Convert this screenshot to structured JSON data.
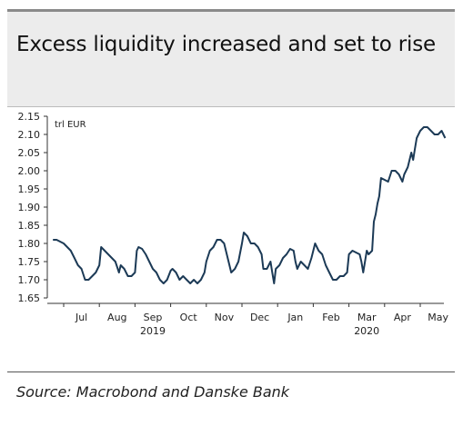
{
  "title": "Excess liquidity increased and set to rise",
  "source": "Source: Macrobond and Danske Bank",
  "chart_data": {
    "type": "line",
    "title": "Excess liquidity increased and set to rise",
    "unit_label": "trl EUR",
    "xlabel": "",
    "ylabel": "",
    "ylim": [
      1.65,
      2.15
    ],
    "yticks": [
      "2.15",
      "2.10",
      "2.05",
      "2.00",
      "1.95",
      "1.90",
      "1.85",
      "1.80",
      "1.75",
      "1.70",
      "1.65"
    ],
    "x_tick_labels": [
      "Jul",
      "Aug",
      "Sep",
      "Oct",
      "Nov",
      "Dec",
      "Jan",
      "Feb",
      "Mar",
      "Apr",
      "May"
    ],
    "year_labels": [
      {
        "label": "2019",
        "month_index": 2.5
      },
      {
        "label": "2020",
        "month_index": 8.5
      }
    ],
    "grid": false,
    "line_color": "#1c3a56",
    "series": [
      {
        "values": [
          [
            -0.3,
            1.81
          ],
          [
            -0.2,
            1.81
          ],
          [
            -0.1,
            1.805
          ],
          [
            0.0,
            1.8
          ],
          [
            0.1,
            1.79
          ],
          [
            0.2,
            1.78
          ],
          [
            0.3,
            1.76
          ],
          [
            0.4,
            1.74
          ],
          [
            0.5,
            1.73
          ],
          [
            0.6,
            1.7
          ],
          [
            0.7,
            1.7
          ],
          [
            0.8,
            1.71
          ],
          [
            0.9,
            1.72
          ],
          [
            1.0,
            1.74
          ],
          [
            1.05,
            1.79
          ],
          [
            1.15,
            1.78
          ],
          [
            1.25,
            1.77
          ],
          [
            1.35,
            1.76
          ],
          [
            1.45,
            1.75
          ],
          [
            1.55,
            1.72
          ],
          [
            1.6,
            1.74
          ],
          [
            1.7,
            1.73
          ],
          [
            1.8,
            1.71
          ],
          [
            1.9,
            1.71
          ],
          [
            2.0,
            1.72
          ],
          [
            2.05,
            1.78
          ],
          [
            2.1,
            1.79
          ],
          [
            2.2,
            1.785
          ],
          [
            2.3,
            1.77
          ],
          [
            2.4,
            1.75
          ],
          [
            2.5,
            1.73
          ],
          [
            2.6,
            1.72
          ],
          [
            2.7,
            1.7
          ],
          [
            2.8,
            1.69
          ],
          [
            2.9,
            1.7
          ],
          [
            3.0,
            1.725
          ],
          [
            3.05,
            1.73
          ],
          [
            3.15,
            1.72
          ],
          [
            3.25,
            1.7
          ],
          [
            3.35,
            1.71
          ],
          [
            3.45,
            1.7
          ],
          [
            3.55,
            1.69
          ],
          [
            3.65,
            1.7
          ],
          [
            3.75,
            1.69
          ],
          [
            3.85,
            1.7
          ],
          [
            3.95,
            1.72
          ],
          [
            4.0,
            1.75
          ],
          [
            4.1,
            1.78
          ],
          [
            4.2,
            1.79
          ],
          [
            4.3,
            1.81
          ],
          [
            4.4,
            1.81
          ],
          [
            4.5,
            1.8
          ],
          [
            4.6,
            1.76
          ],
          [
            4.7,
            1.72
          ],
          [
            4.8,
            1.73
          ],
          [
            4.9,
            1.75
          ],
          [
            5.0,
            1.8
          ],
          [
            5.05,
            1.83
          ],
          [
            5.15,
            1.82
          ],
          [
            5.25,
            1.8
          ],
          [
            5.35,
            1.8
          ],
          [
            5.45,
            1.79
          ],
          [
            5.55,
            1.77
          ],
          [
            5.6,
            1.73
          ],
          [
            5.7,
            1.73
          ],
          [
            5.8,
            1.75
          ],
          [
            5.85,
            1.72
          ],
          [
            5.9,
            1.69
          ],
          [
            5.95,
            1.73
          ],
          [
            6.05,
            1.74
          ],
          [
            6.15,
            1.76
          ],
          [
            6.25,
            1.77
          ],
          [
            6.35,
            1.785
          ],
          [
            6.45,
            1.78
          ],
          [
            6.5,
            1.75
          ],
          [
            6.55,
            1.73
          ],
          [
            6.65,
            1.75
          ],
          [
            6.75,
            1.74
          ],
          [
            6.85,
            1.73
          ],
          [
            6.95,
            1.76
          ],
          [
            7.05,
            1.8
          ],
          [
            7.15,
            1.78
          ],
          [
            7.25,
            1.77
          ],
          [
            7.35,
            1.74
          ],
          [
            7.45,
            1.72
          ],
          [
            7.55,
            1.7
          ],
          [
            7.65,
            1.7
          ],
          [
            7.75,
            1.71
          ],
          [
            7.85,
            1.71
          ],
          [
            7.95,
            1.72
          ],
          [
            8.0,
            1.77
          ],
          [
            8.1,
            1.78
          ],
          [
            8.2,
            1.775
          ],
          [
            8.3,
            1.77
          ],
          [
            8.35,
            1.75
          ],
          [
            8.4,
            1.72
          ],
          [
            8.5,
            1.78
          ],
          [
            8.55,
            1.77
          ],
          [
            8.65,
            1.78
          ],
          [
            8.7,
            1.86
          ],
          [
            8.75,
            1.88
          ],
          [
            8.8,
            1.91
          ],
          [
            8.85,
            1.93
          ],
          [
            8.9,
            1.98
          ],
          [
            9.0,
            1.975
          ],
          [
            9.1,
            1.97
          ],
          [
            9.2,
            2.0
          ],
          [
            9.3,
            2.0
          ],
          [
            9.4,
            1.99
          ],
          [
            9.5,
            1.97
          ],
          [
            9.55,
            1.99
          ],
          [
            9.65,
            2.01
          ],
          [
            9.75,
            2.05
          ],
          [
            9.8,
            2.03
          ],
          [
            9.85,
            2.06
          ],
          [
            9.9,
            2.09
          ],
          [
            10.0,
            2.11
          ],
          [
            10.1,
            2.12
          ],
          [
            10.2,
            2.12
          ],
          [
            10.3,
            2.11
          ],
          [
            10.4,
            2.1
          ],
          [
            10.5,
            2.1
          ],
          [
            10.6,
            2.11
          ],
          [
            10.7,
            2.09
          ]
        ]
      }
    ]
  }
}
